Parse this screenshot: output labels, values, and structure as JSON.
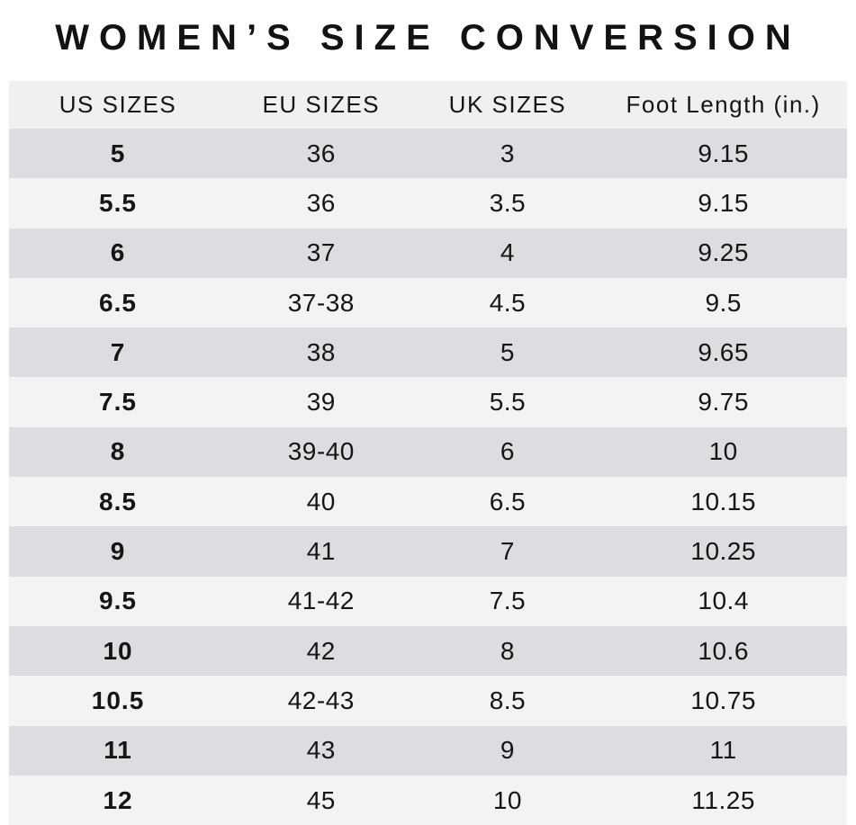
{
  "title": "WOMEN’S SIZE CONVERSION",
  "colors": {
    "header_bg": "#f0f0f0",
    "row_dark": "#dcdde0",
    "row_light": "#f3f3f4",
    "text": "#151515",
    "page_bg": "#ffffff"
  },
  "chart_data": {
    "type": "table",
    "title": "WOMEN’S SIZE CONVERSION",
    "columns": [
      "US SIZES",
      "EU SIZES",
      "UK SIZES",
      "Foot Length (in.)"
    ],
    "rows": [
      [
        "5",
        "36",
        "3",
        "9.15"
      ],
      [
        "5.5",
        "36",
        "3.5",
        "9.15"
      ],
      [
        "6",
        "37",
        "4",
        "9.25"
      ],
      [
        "6.5",
        "37-38",
        "4.5",
        "9.5"
      ],
      [
        "7",
        "38",
        "5",
        "9.65"
      ],
      [
        "7.5",
        "39",
        "5.5",
        "9.75"
      ],
      [
        "8",
        "39-40",
        "6",
        "10"
      ],
      [
        "8.5",
        "40",
        "6.5",
        "10.15"
      ],
      [
        "9",
        "41",
        "7",
        "10.25"
      ],
      [
        "9.5",
        "41-42",
        "7.5",
        "10.4"
      ],
      [
        "10",
        "42",
        "8",
        "10.6"
      ],
      [
        "10.5",
        "42-43",
        "8.5",
        "10.75"
      ],
      [
        "11",
        "43",
        "9",
        "11"
      ],
      [
        "12",
        "45",
        "10",
        "11.25"
      ]
    ]
  }
}
